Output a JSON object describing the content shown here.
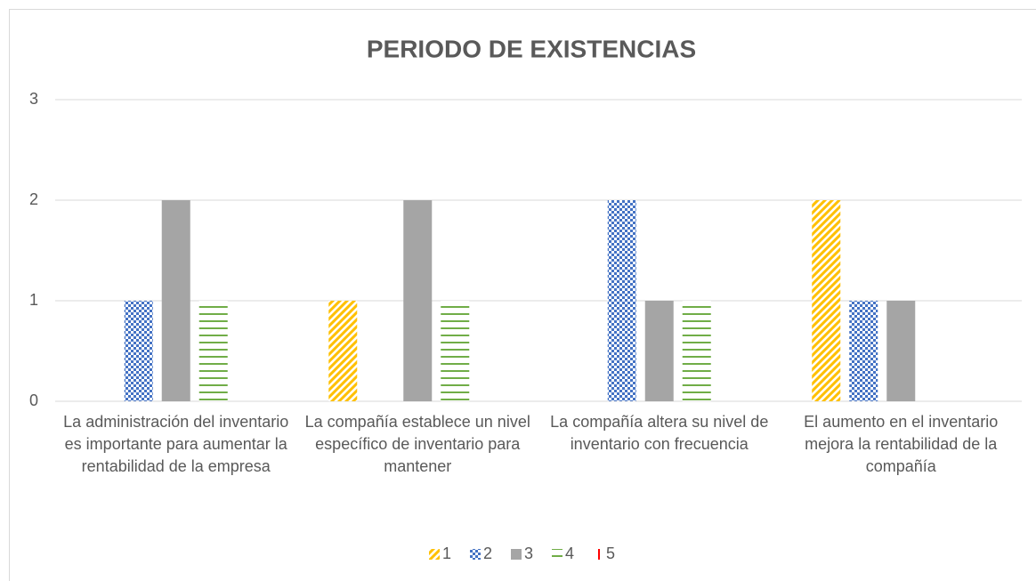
{
  "chart_data": {
    "type": "bar",
    "title": "PERIODO DE EXISTENCIAS",
    "categories": [
      "La administración del inventario es importante para aumentar la rentabilidad de la empresa",
      "La compañía establece un nivel específico de inventario para mantener",
      "La compañía altera su nivel de inventario con frecuencia",
      "El aumento en el inventario mejora la rentabilidad de la compañía"
    ],
    "series": [
      {
        "name": "1",
        "color": "#ffc000",
        "pattern": "diagonal",
        "values": [
          0,
          1,
          0,
          2
        ]
      },
      {
        "name": "2",
        "color": "#4472c4",
        "pattern": "checker",
        "values": [
          1,
          0,
          2,
          1
        ]
      },
      {
        "name": "3",
        "color": "#a5a5a5",
        "pattern": "solid",
        "values": [
          2,
          2,
          1,
          1
        ]
      },
      {
        "name": "4",
        "color": "#70ad47",
        "pattern": "horizontal",
        "values": [
          1,
          1,
          1,
          0
        ]
      },
      {
        "name": "5",
        "color": "#ff0000",
        "pattern": "vertical",
        "values": [
          0,
          0,
          0,
          0
        ]
      }
    ],
    "ylim": [
      0,
      3
    ],
    "yticks": [
      0,
      1,
      2,
      3
    ],
    "grid": true,
    "legend": "bottom"
  }
}
